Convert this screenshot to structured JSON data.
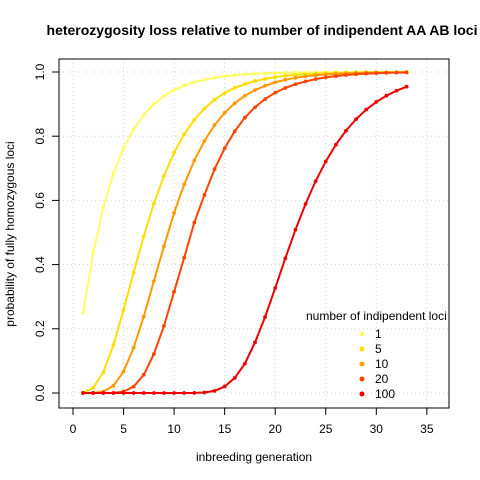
{
  "chart_data": {
    "type": "line",
    "title": "heterozygosity loss relative to number of indipendent AA AB loci",
    "xlabel": "inbreeding generation",
    "ylabel": "probability of fully homozygous loci",
    "xlim": [
      0,
      36
    ],
    "ylim": [
      0,
      1
    ],
    "xticks": [
      0,
      5,
      10,
      15,
      20,
      25,
      30,
      35
    ],
    "yticks": [
      0.0,
      0.2,
      0.4,
      0.6,
      0.8,
      1.0
    ],
    "ytick_labels": [
      "0.0",
      "0.2",
      "0.4",
      "0.6",
      "0.8",
      "1.0"
    ],
    "grid": true,
    "x": [
      1,
      2,
      3,
      4,
      5,
      6,
      7,
      8,
      9,
      10,
      11,
      12,
      13,
      14,
      15,
      16,
      17,
      18,
      19,
      20,
      21,
      22,
      23,
      24,
      25,
      26,
      27,
      28,
      29,
      30,
      31,
      32,
      33
    ],
    "legend": {
      "title": "number of indipendent loci",
      "placement": "bottom-right"
    },
    "series": [
      {
        "name": "1",
        "color": "#ffff66",
        "values": [
          0.25,
          0.4375,
          0.5781,
          0.6836,
          0.7627,
          0.822,
          0.8665,
          0.8999,
          0.9249,
          0.9437,
          0.9578,
          0.9683,
          0.9762,
          0.9822,
          0.9866,
          0.99,
          0.9925,
          0.9944,
          0.9958,
          0.9968,
          0.9976,
          0.9982,
          0.9987,
          0.999,
          0.9992,
          0.9994,
          0.9996,
          0.9997,
          0.9998,
          0.9998,
          0.9999,
          0.9999,
          0.9999
        ]
      },
      {
        "name": "5",
        "color": "#ffdd00",
        "values": [
          0.001,
          0.0159,
          0.0645,
          0.15,
          0.2585,
          0.3757,
          0.4883,
          0.5903,
          0.6765,
          0.7487,
          0.8061,
          0.8512,
          0.8865,
          0.9137,
          0.9345,
          0.9504,
          0.9625,
          0.9717,
          0.9786,
          0.9839,
          0.9879,
          0.9909,
          0.9931,
          0.9948,
          0.9961,
          0.9971,
          0.9978,
          0.9984,
          0.9988,
          0.9991,
          0.9993,
          0.9995,
          0.9996
        ]
      },
      {
        "name": "10",
        "color": "#ff9900",
        "values": [
          0.0,
          0.0003,
          0.0042,
          0.0225,
          0.0668,
          0.1411,
          0.2384,
          0.3484,
          0.4574,
          0.5614,
          0.6498,
          0.7245,
          0.7851,
          0.8349,
          0.873,
          0.9029,
          0.9259,
          0.9434,
          0.9571,
          0.9677,
          0.9757,
          0.9819,
          0.9863,
          0.9897,
          0.9922,
          0.9942,
          0.9957,
          0.9967,
          0.9976,
          0.9982,
          0.9987,
          0.999,
          0.9993
        ]
      },
      {
        "name": "20",
        "color": "#ff4400",
        "values": [
          0.0,
          0.0,
          0.0,
          0.0005,
          0.0045,
          0.0199,
          0.0568,
          0.1214,
          0.2092,
          0.3156,
          0.4215,
          0.5312,
          0.617,
          0.6972,
          0.7624,
          0.8156,
          0.8576,
          0.8903,
          0.9156,
          0.9358,
          0.9503,
          0.9618,
          0.9706,
          0.9777,
          0.9833,
          0.9872,
          0.9905,
          0.9931,
          0.9948,
          0.9962,
          0.9973,
          0.998,
          0.9985
        ]
      },
      {
        "name": "100",
        "color": "#ee0000",
        "values": [
          0.0,
          0.0,
          0.0,
          0.0,
          0.0,
          0.0,
          0.0,
          0.0,
          0.0,
          0.0,
          0.0,
          0.0002,
          0.0015,
          0.0065,
          0.0202,
          0.0469,
          0.0916,
          0.1575,
          0.2368,
          0.327,
          0.4196,
          0.5083,
          0.5889,
          0.66,
          0.7213,
          0.7735,
          0.8171,
          0.8531,
          0.8827,
          0.9068,
          0.9262,
          0.9418,
          0.9543
        ]
      }
    ]
  }
}
